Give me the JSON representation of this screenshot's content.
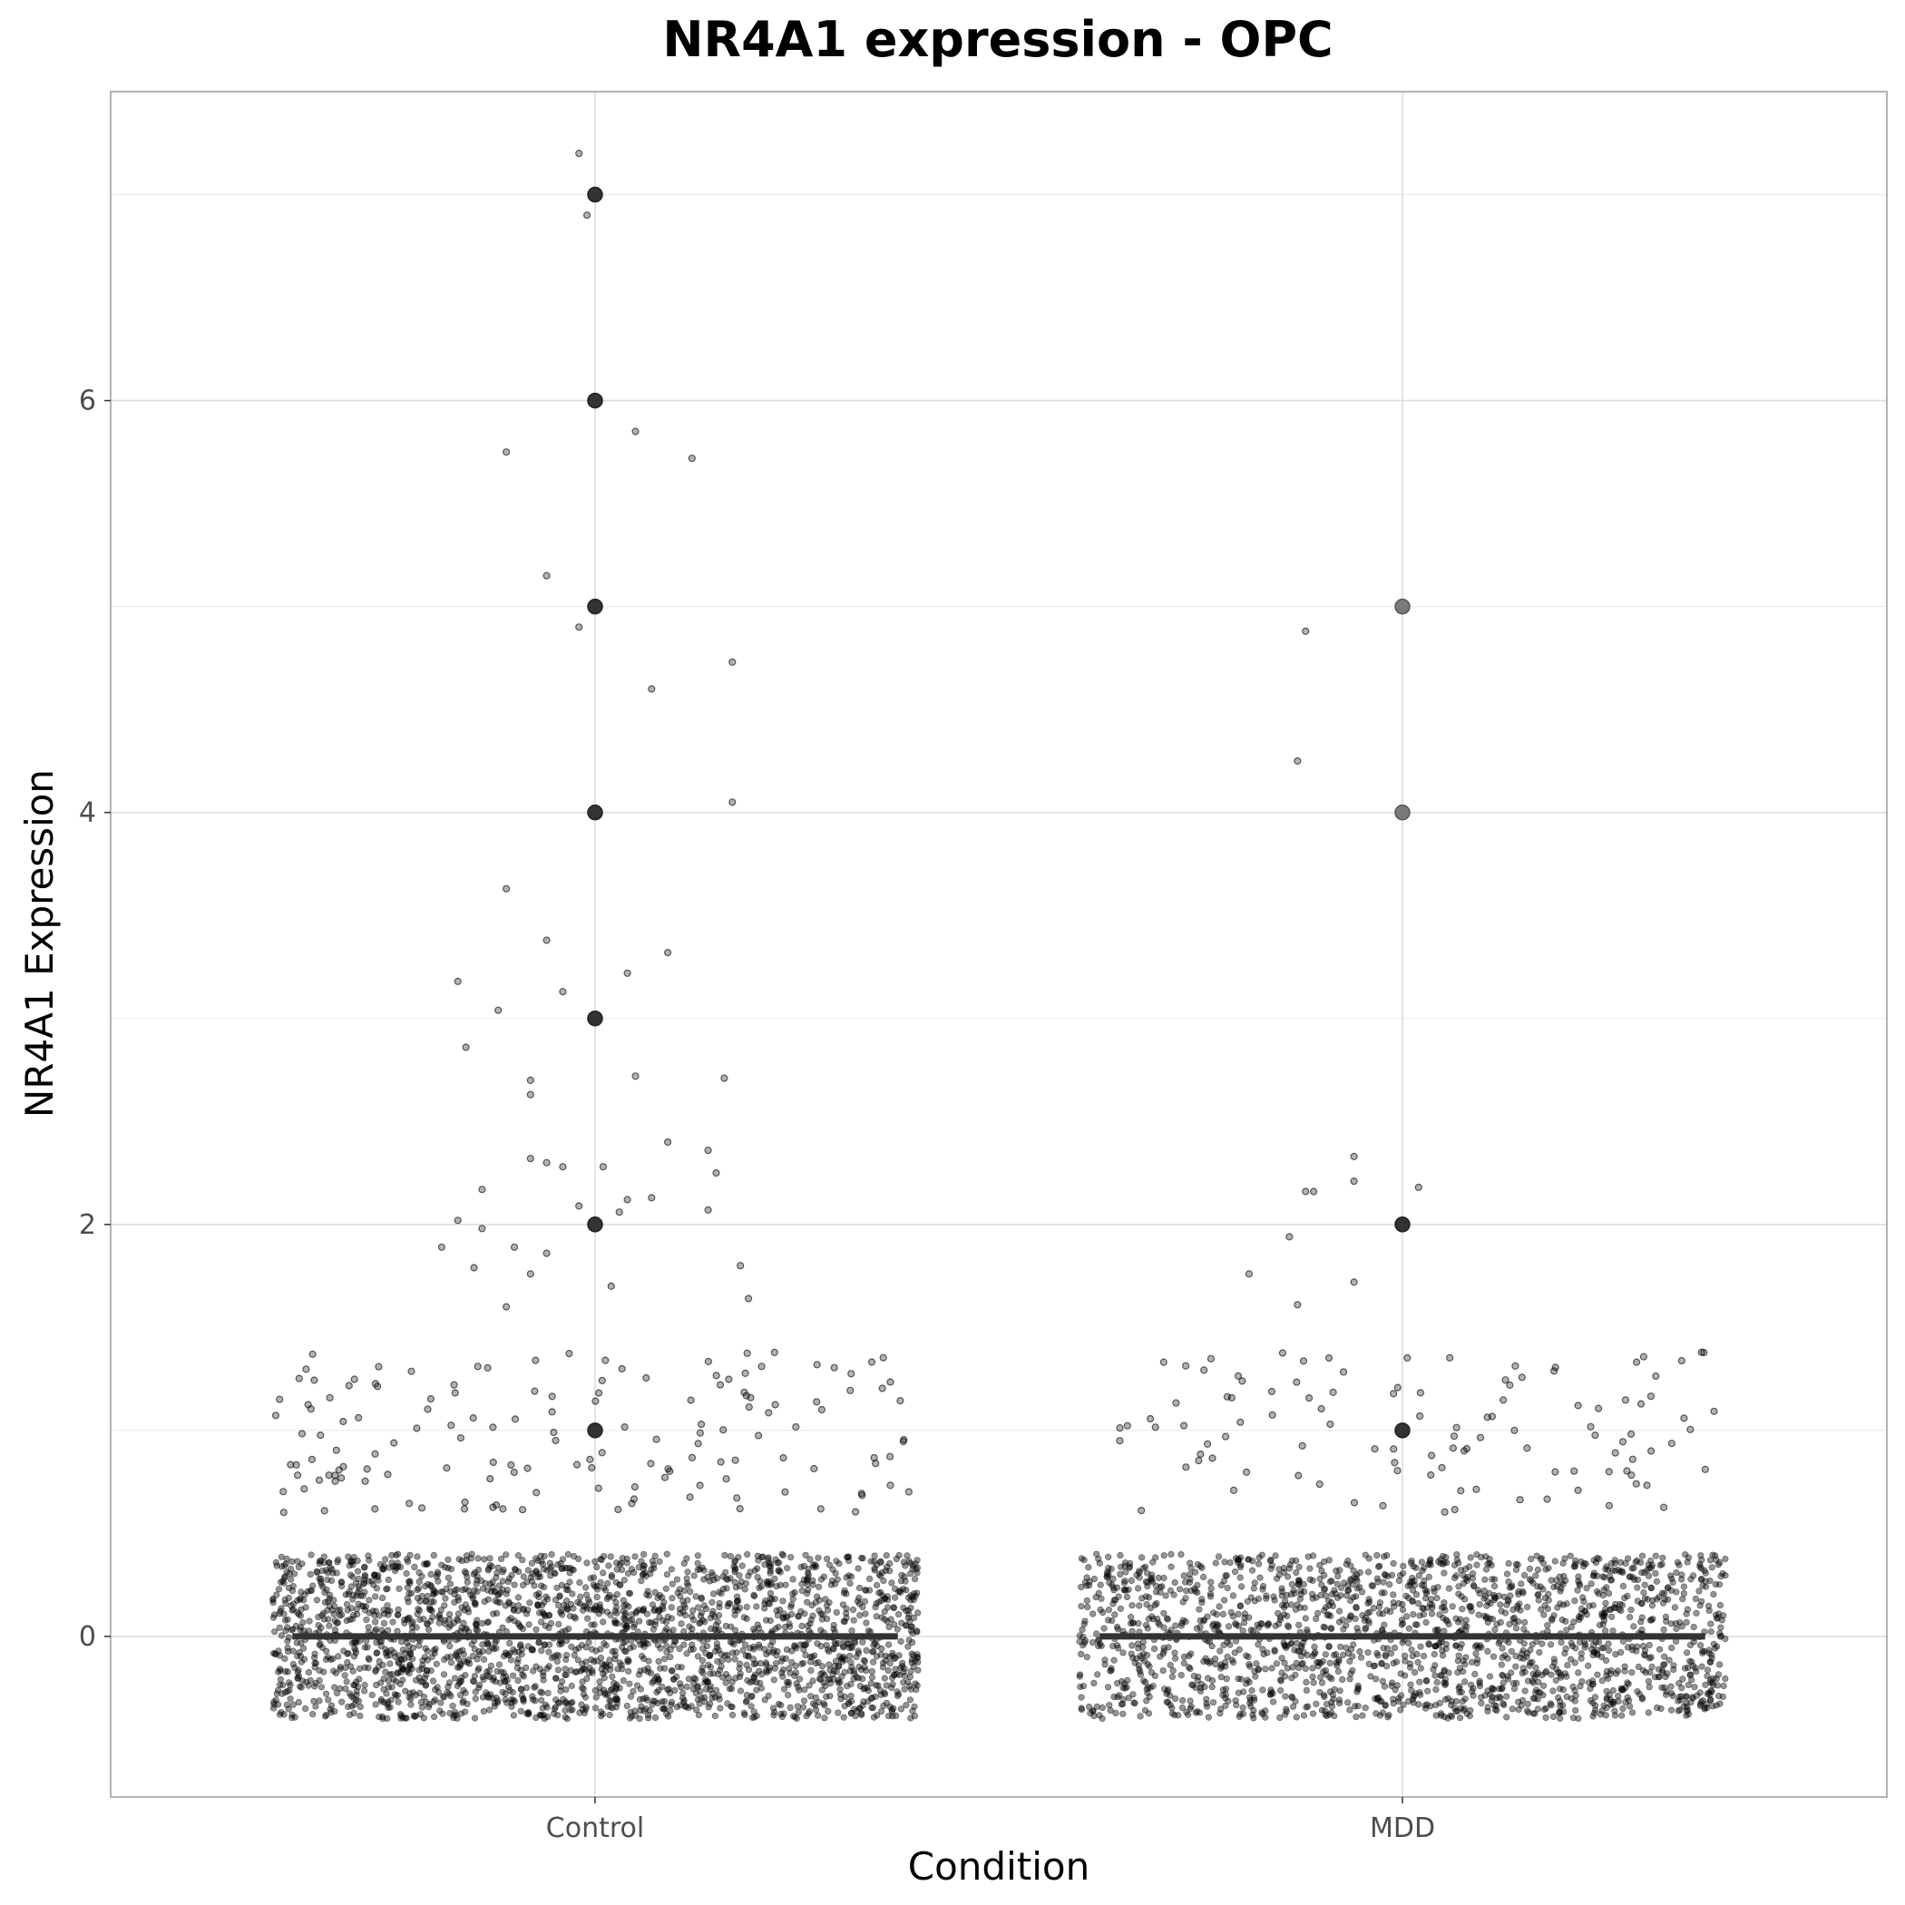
{
  "chart_data": {
    "type": "scatter",
    "title": "NR4A1 expression - OPC",
    "xlabel": "Condition",
    "ylabel": "NR4A1 Expression",
    "categories": [
      "Control",
      "MDD"
    ],
    "ylim": [
      -0.78,
      7.5
    ],
    "yticks": [
      0,
      2,
      4,
      6
    ],
    "grid": true,
    "legend": "none",
    "medians": [
      0,
      0
    ],
    "jitter_zero_cluster": {
      "half_width": 0.4,
      "count_per_category": [
        2400,
        1900
      ]
    },
    "outliers": [
      {
        "category": "Control",
        "values": [
          1,
          2,
          3,
          4,
          5,
          6,
          7
        ]
      },
      {
        "category": "MDD",
        "values": [
          1,
          2,
          4,
          5
        ]
      }
    ],
    "notable_points": [
      {
        "category": "Control",
        "dx": -0.02,
        "y": 7.2
      },
      {
        "category": "Control",
        "dx": -0.01,
        "y": 6.9
      },
      {
        "category": "Control",
        "dx": 0.05,
        "y": 5.85
      },
      {
        "category": "Control",
        "dx": -0.11,
        "y": 5.75
      },
      {
        "category": "Control",
        "dx": 0.12,
        "y": 5.72
      },
      {
        "category": "Control",
        "dx": -0.06,
        "y": 5.15
      },
      {
        "category": "Control",
        "dx": -0.02,
        "y": 4.9
      },
      {
        "category": "Control",
        "dx": 0.17,
        "y": 4.73
      },
      {
        "category": "Control",
        "dx": 0.07,
        "y": 4.6
      },
      {
        "category": "Control",
        "dx": 0.17,
        "y": 4.05
      },
      {
        "category": "Control",
        "dx": -0.11,
        "y": 3.63
      },
      {
        "category": "Control",
        "dx": -0.06,
        "y": 3.38
      },
      {
        "category": "Control",
        "dx": 0.09,
        "y": 3.32
      },
      {
        "category": "Control",
        "dx": 0.04,
        "y": 3.22
      },
      {
        "category": "Control",
        "dx": -0.17,
        "y": 3.18
      },
      {
        "category": "Control",
        "dx": -0.04,
        "y": 3.13
      },
      {
        "category": "Control",
        "dx": -0.12,
        "y": 3.04
      },
      {
        "category": "Control",
        "dx": -0.16,
        "y": 2.86
      },
      {
        "category": "Control",
        "dx": 0.05,
        "y": 2.72
      },
      {
        "category": "Control",
        "dx": 0.16,
        "y": 2.71
      },
      {
        "category": "Control",
        "dx": -0.08,
        "y": 2.7
      },
      {
        "category": "Control",
        "dx": -0.08,
        "y": 2.63
      },
      {
        "category": "Control",
        "dx": 0.09,
        "y": 2.4
      },
      {
        "category": "Control",
        "dx": 0.14,
        "y": 2.36
      },
      {
        "category": "Control",
        "dx": -0.08,
        "y": 2.32
      },
      {
        "category": "Control",
        "dx": -0.06,
        "y": 2.3
      },
      {
        "category": "Control",
        "dx": -0.04,
        "y": 2.28
      },
      {
        "category": "Control",
        "dx": 0.01,
        "y": 2.28
      },
      {
        "category": "Control",
        "dx": 0.15,
        "y": 2.25
      },
      {
        "category": "Control",
        "dx": -0.14,
        "y": 2.17
      },
      {
        "category": "Control",
        "dx": 0.07,
        "y": 2.13
      },
      {
        "category": "Control",
        "dx": 0.04,
        "y": 2.12
      },
      {
        "category": "Control",
        "dx": -0.02,
        "y": 2.09
      },
      {
        "category": "Control",
        "dx": 0.14,
        "y": 2.07
      },
      {
        "category": "Control",
        "dx": 0.03,
        "y": 2.06
      },
      {
        "category": "Control",
        "dx": -0.17,
        "y": 2.02
      },
      {
        "category": "Control",
        "dx": -0.14,
        "y": 1.98
      },
      {
        "category": "Control",
        "dx": -0.19,
        "y": 1.89
      },
      {
        "category": "Control",
        "dx": -0.1,
        "y": 1.89
      },
      {
        "category": "Control",
        "dx": -0.06,
        "y": 1.86
      },
      {
        "category": "Control",
        "dx": 0.18,
        "y": 1.8
      },
      {
        "category": "Control",
        "dx": -0.15,
        "y": 1.79
      },
      {
        "category": "Control",
        "dx": -0.08,
        "y": 1.76
      },
      {
        "category": "Control",
        "dx": 0.02,
        "y": 1.7
      },
      {
        "category": "Control",
        "dx": 0.19,
        "y": 1.64
      },
      {
        "category": "Control",
        "dx": -0.11,
        "y": 1.6
      },
      {
        "category": "MDD",
        "dx": -0.12,
        "y": 4.88
      },
      {
        "category": "MDD",
        "dx": -0.13,
        "y": 4.25
      },
      {
        "category": "MDD",
        "dx": -0.06,
        "y": 2.33
      },
      {
        "category": "MDD",
        "dx": -0.06,
        "y": 2.21
      },
      {
        "category": "MDD",
        "dx": 0.02,
        "y": 2.18
      },
      {
        "category": "MDD",
        "dx": -0.12,
        "y": 2.16
      },
      {
        "category": "MDD",
        "dx": -0.11,
        "y": 2.16
      },
      {
        "category": "MDD",
        "dx": -0.14,
        "y": 1.94
      },
      {
        "category": "MDD",
        "dx": -0.19,
        "y": 1.76
      },
      {
        "category": "MDD",
        "dx": -0.06,
        "y": 1.72
      },
      {
        "category": "MDD",
        "dx": -0.13,
        "y": 1.61
      }
    ]
  }
}
